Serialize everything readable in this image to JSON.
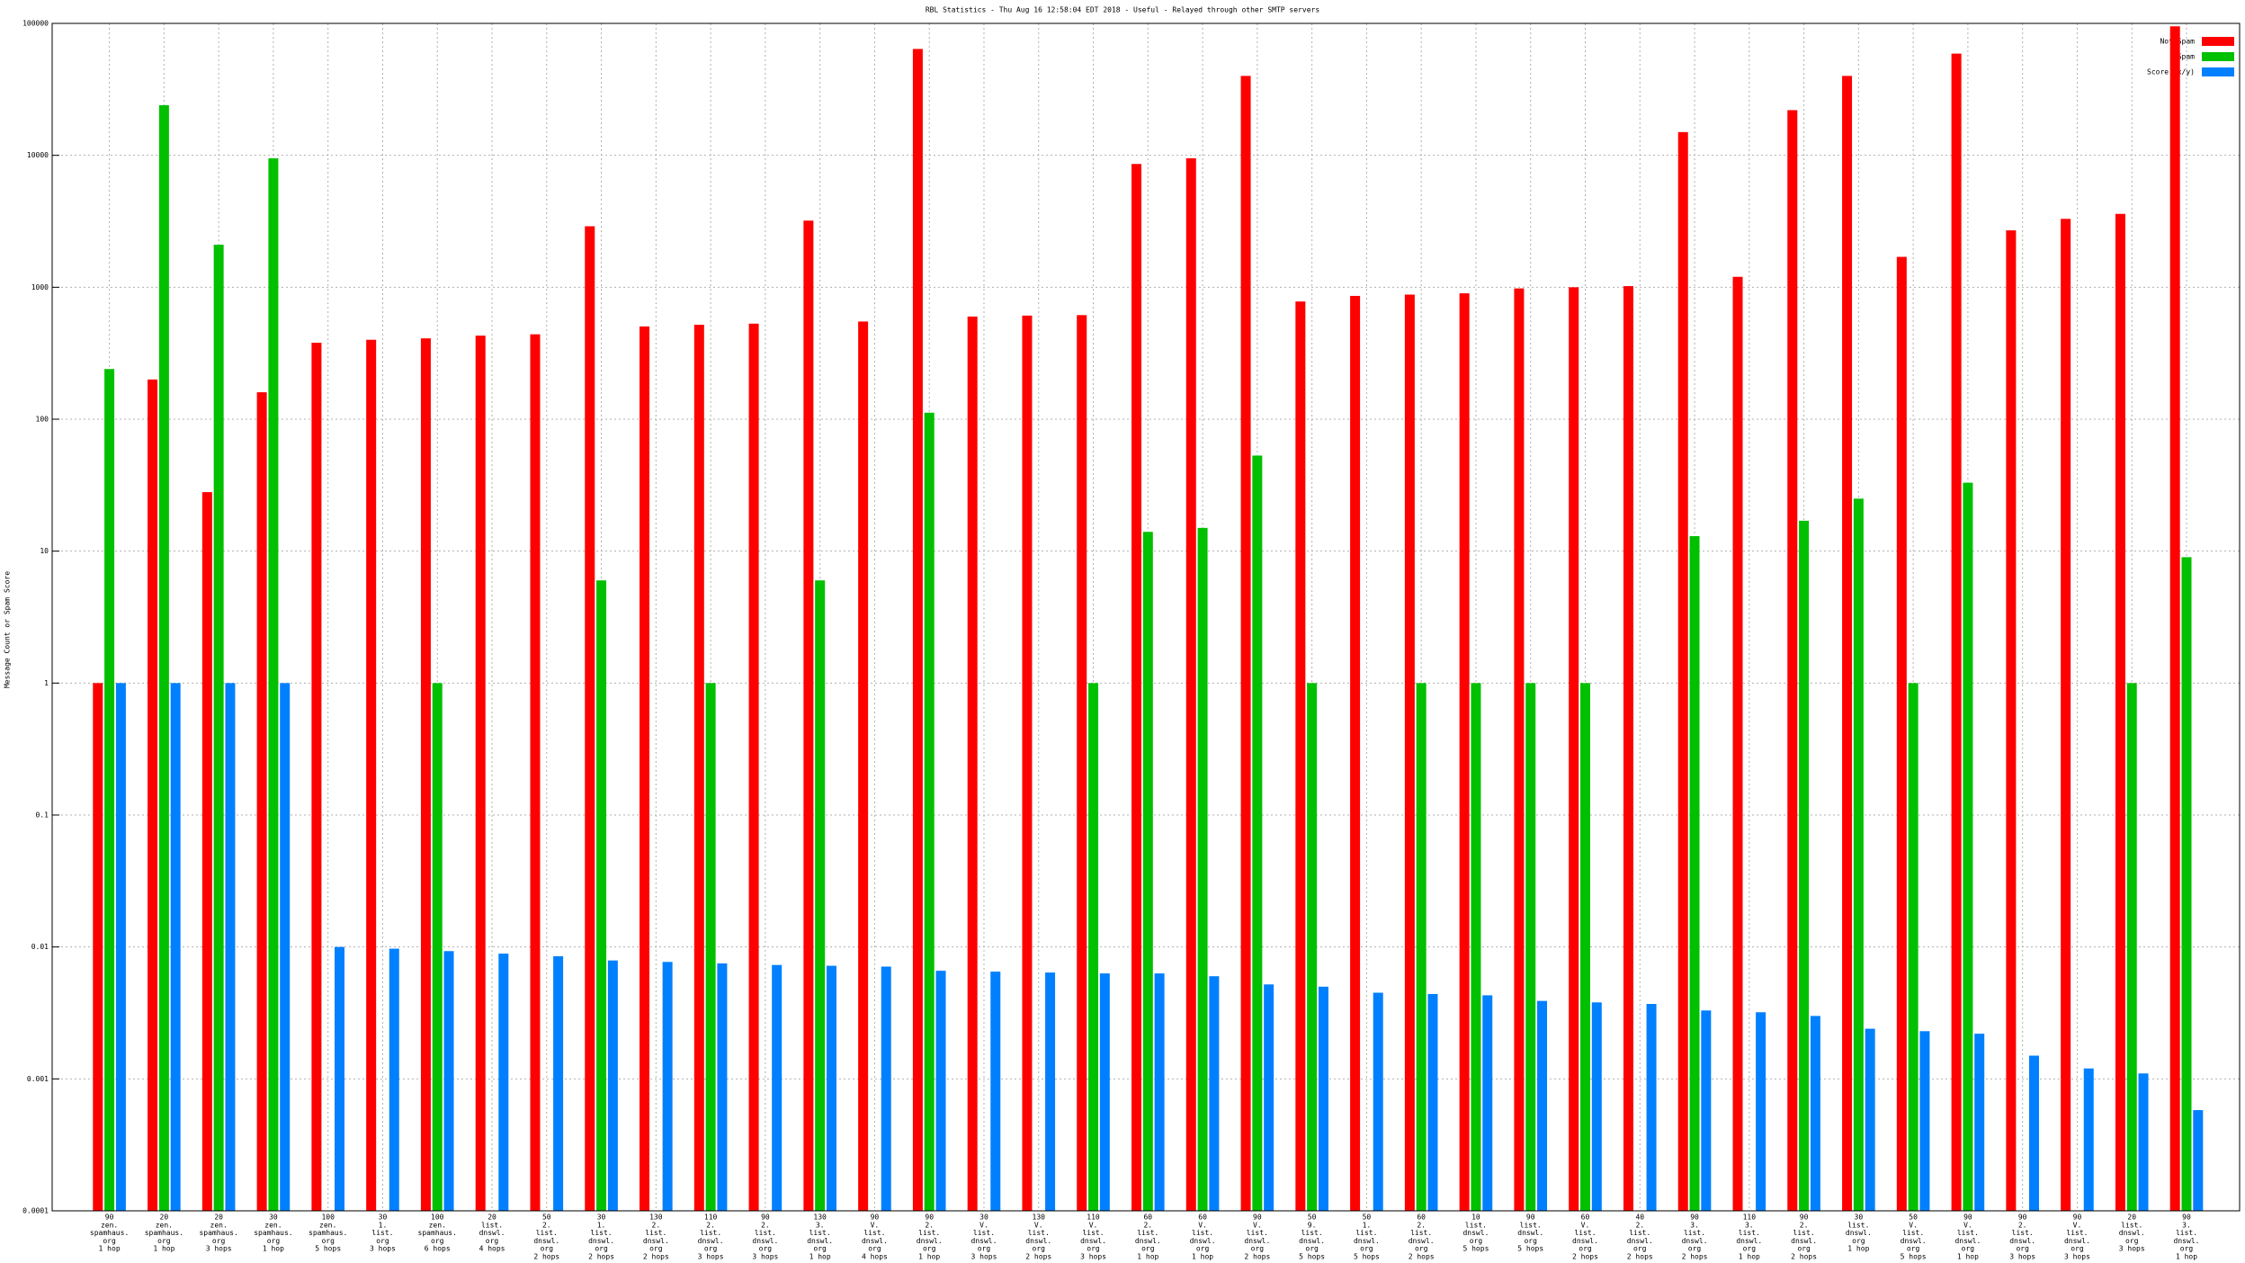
{
  "chart_data": {
    "type": "bar",
    "title": "RBL Statistics - Thu Aug 16 12:58:04 EDT 2018 - Useful - Relayed through other SMTP servers",
    "y_label": "Message Count or Spam Score",
    "log_scale": true,
    "grid": true,
    "legend": "top-right",
    "categories": [
      [
        "90",
        "zen.",
        "spamhaus.",
        "org",
        "1 hop"
      ],
      [
        "20",
        "zen.",
        "spamhaus.",
        "org",
        "1 hop"
      ],
      [
        "20",
        "zen.",
        "spamhaus.",
        "org",
        "3 hops"
      ],
      [
        "30",
        "zen.",
        "spamhaus.",
        "org",
        "1 hop"
      ],
      [
        "100",
        "zen.",
        "spamhaus.",
        "org",
        "5 hops"
      ],
      [
        "30",
        "1.",
        "list.",
        "org",
        "3 hops"
      ],
      [
        "100",
        "zen.",
        "spamhaus.",
        "org",
        "6 hops"
      ],
      [
        "20",
        "list.",
        "dnswl.",
        "org",
        "4 hops"
      ],
      [
        "50",
        "2.",
        "list.",
        "dnswl.",
        "org",
        "2 hops"
      ],
      [
        "30",
        "1.",
        "list.",
        "dnswl.",
        "org",
        "2 hops"
      ],
      [
        "130",
        "2.",
        "list.",
        "dnswl.",
        "org",
        "2 hops"
      ],
      [
        "110",
        "2.",
        "list.",
        "dnswl.",
        "org",
        "3 hops"
      ],
      [
        "90",
        "2.",
        "list.",
        "dnswl.",
        "org",
        "3 hops"
      ],
      [
        "130",
        "3.",
        "list.",
        "dnswl.",
        "org",
        "1 hop"
      ],
      [
        "90",
        "V.",
        "list.",
        "dnswl.",
        "org",
        "4 hops"
      ],
      [
        "90",
        "2.",
        "list.",
        "dnswl.",
        "org",
        "1 hop"
      ],
      [
        "30",
        "V.",
        "list.",
        "dnswl.",
        "org",
        "3 hops"
      ],
      [
        "130",
        "V.",
        "list.",
        "dnswl.",
        "org",
        "2 hops"
      ],
      [
        "110",
        "V.",
        "list.",
        "dnswl.",
        "org",
        "3 hops"
      ],
      [
        "60",
        "2.",
        "list.",
        "dnswl.",
        "org",
        "1 hop"
      ],
      [
        "60",
        "V.",
        "list.",
        "dnswl.",
        "org",
        "1 hop"
      ],
      [
        "90",
        "V.",
        "list.",
        "dnswl.",
        "org",
        "2 hops"
      ],
      [
        "50",
        "9.",
        "list.",
        "dnswl.",
        "org",
        "5 hops"
      ],
      [
        "50",
        "1.",
        "list.",
        "dnswl.",
        "org",
        "5 hops"
      ],
      [
        "60",
        "2.",
        "list.",
        "dnswl.",
        "org",
        "2 hops"
      ],
      [
        "10",
        "list.",
        "dnswl.",
        "org",
        "5 hops"
      ],
      [
        "90",
        "list.",
        "dnswl.",
        "org",
        "5 hops"
      ],
      [
        "60",
        "V.",
        "list.",
        "dnswl.",
        "org",
        "2 hops"
      ],
      [
        "40",
        "2.",
        "list.",
        "dnswl.",
        "org",
        "2 hops"
      ],
      [
        "90",
        "3.",
        "list.",
        "dnswl.",
        "org",
        "2 hops"
      ],
      [
        "110",
        "3.",
        "list.",
        "dnswl.",
        "org",
        "1 hop"
      ],
      [
        "90",
        "2.",
        "list.",
        "dnswl.",
        "org",
        "2 hops"
      ],
      [
        "30",
        "list.",
        "dnswl.",
        "org",
        "1 hop"
      ],
      [
        "50",
        "V.",
        "list.",
        "dnswl.",
        "org",
        "5 hops"
      ],
      [
        "90",
        "V.",
        "list.",
        "dnswl.",
        "org",
        "1 hop"
      ],
      [
        "90",
        "2.",
        "list.",
        "dnswl.",
        "org",
        "3 hops"
      ],
      [
        "90",
        "V.",
        "list.",
        "dnswl.",
        "org",
        "3 hops"
      ],
      [
        "20",
        "list.",
        "dnswl.",
        "org",
        "3 hops"
      ],
      [
        "90",
        "3.",
        "list.",
        "dnswl.",
        "org",
        "1 hop"
      ]
    ],
    "series": [
      {
        "name": "Not Spam",
        "color": "#ff0000",
        "values": [
          1,
          200,
          28,
          160,
          380,
          400,
          410,
          430,
          440,
          2900,
          505,
          520,
          530,
          3200,
          550,
          64000,
          600,
          610,
          615,
          8600,
          9500,
          40000,
          780,
          860,
          880,
          900,
          980,
          1000,
          1020,
          15000,
          1200,
          22000,
          40000,
          1700,
          59000,
          2700,
          3300,
          3600,
          95000
        ]
      },
      {
        "name": "Spam",
        "color": "#00c000",
        "values": [
          240,
          24000,
          2100,
          9500,
          null,
          null,
          1,
          null,
          null,
          6,
          null,
          1,
          null,
          6,
          null,
          112,
          null,
          null,
          1,
          14,
          15,
          53,
          1,
          null,
          1,
          1,
          1,
          1,
          null,
          13,
          null,
          17,
          25,
          1,
          33,
          null,
          null,
          1,
          9
        ]
      },
      {
        "name": "Score (x/y)",
        "color": "#0080ff",
        "values": [
          1,
          1,
          1,
          1,
          0.01,
          0.0097,
          0.0093,
          0.0089,
          0.0085,
          0.0079,
          0.0077,
          0.0075,
          0.0073,
          0.0072,
          0.0071,
          0.0066,
          0.0065,
          0.0064,
          0.0063,
          0.0063,
          0.006,
          0.0052,
          0.005,
          0.0045,
          0.0044,
          0.0043,
          0.0039,
          0.0038,
          0.0037,
          0.0033,
          0.0032,
          0.003,
          0.0024,
          0.0023,
          0.0022,
          0.0015,
          0.0012,
          0.0011,
          0.00058
        ]
      }
    ],
    "ylim": [
      0.0001,
      100000
    ],
    "yticks": [
      0.0001,
      0.001,
      0.01,
      0.1,
      1,
      10,
      100,
      1000,
      10000,
      100000
    ]
  }
}
